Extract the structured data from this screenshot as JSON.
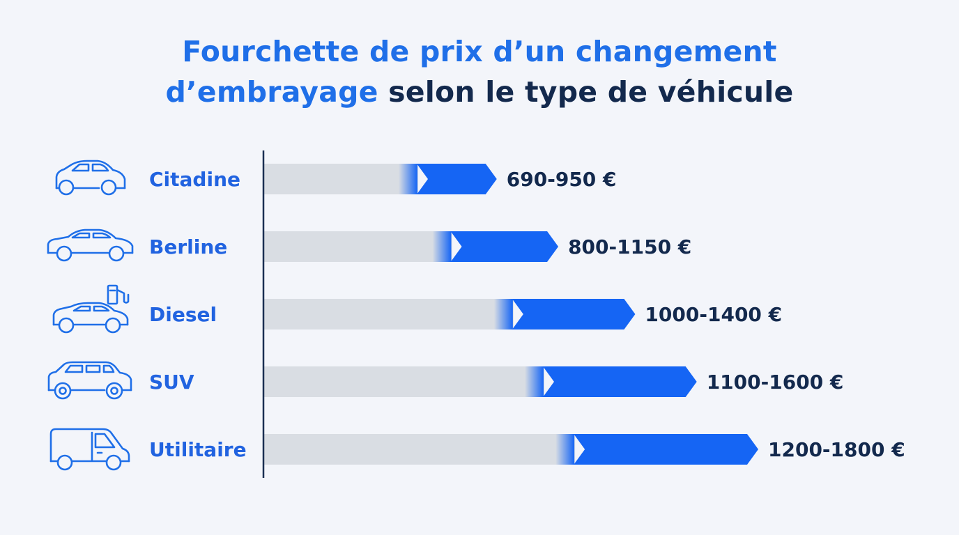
{
  "title": {
    "line1": "Fourchette de prix d’un changement",
    "line2_accent": "d’embrayage",
    "line2_rest": " selon le type de véhicule"
  },
  "colors": {
    "accent": "#1f6fe8",
    "bar_range": "#1565f4",
    "bar_track": "#d9dde3",
    "text_dark": "#13294d",
    "background": "#f3f5fa"
  },
  "chart_data": {
    "type": "bar",
    "orientation": "horizontal",
    "title": "Fourchette de prix d’un changement d’embrayage selon le type de véhicule",
    "unit": "€",
    "grid": false,
    "categories": [
      "Citadine",
      "Berline",
      "Diesel",
      "SUV",
      "Utilitaire"
    ],
    "icons": [
      "city-car-icon",
      "sedan-icon",
      "diesel-car-icon",
      "suv-icon",
      "van-icon"
    ],
    "ranges": [
      {
        "category": "Citadine",
        "min": 690,
        "max": 950,
        "label": "690-950 €"
      },
      {
        "category": "Berline",
        "min": 800,
        "max": 1150,
        "label": "800-1150 €"
      },
      {
        "category": "Diesel",
        "min": 1000,
        "max": 1400,
        "label": "1000-1400 €"
      },
      {
        "category": "SUV",
        "min": 1100,
        "max": 1600,
        "label": "1100-1600 €"
      },
      {
        "category": "Utilitaire",
        "min": 1200,
        "max": 1800,
        "label": "1200-1800 €"
      }
    ]
  }
}
